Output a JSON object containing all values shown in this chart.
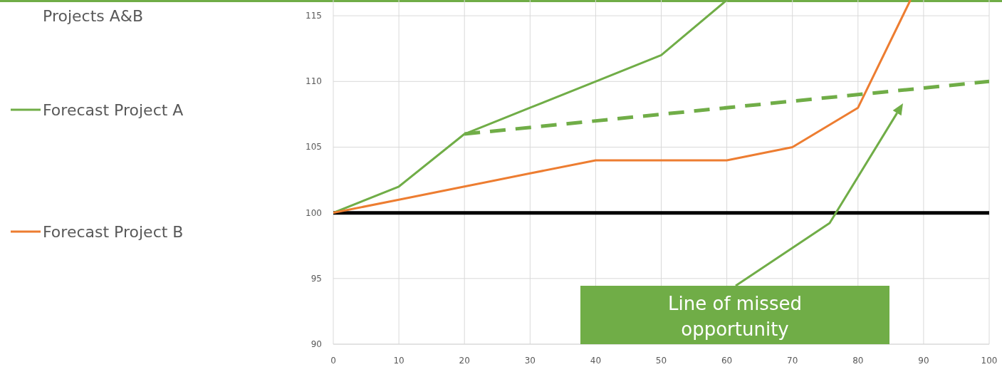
{
  "chart_data": {
    "type": "line",
    "title": "Projects A&B",
    "xlim": [
      0,
      100
    ],
    "xticks": [
      0,
      10,
      20,
      30,
      40,
      50,
      60,
      70,
      80,
      90,
      100
    ],
    "ylim": [
      90,
      116.2
    ],
    "yticks": [
      90,
      95,
      100,
      105,
      110,
      115
    ],
    "grid": true,
    "legend": "left",
    "line_style": "solid",
    "marker": "none",
    "series": [
      {
        "name": "Forecast Project A",
        "color": "#70ad47",
        "x": [
          0,
          10,
          20,
          30,
          40,
          50,
          60
        ],
        "values": [
          100,
          102,
          106,
          108,
          110,
          112,
          116.2
        ]
      },
      {
        "name": "Forecast Project B",
        "color": "#ed7d31",
        "x": [
          0,
          10,
          20,
          30,
          40,
          50,
          60,
          70,
          80,
          88
        ],
        "values": [
          100,
          101,
          102,
          103,
          104,
          104,
          104,
          105,
          108,
          116.2
        ]
      },
      {
        "type": "line",
        "line_style": "dashed",
        "color": "#70ad47",
        "x": [
          20,
          100
        ],
        "values": [
          106,
          110
        ]
      }
    ],
    "ref_lines": [
      {
        "axis": "y",
        "value": 100,
        "color": "#000000"
      }
    ],
    "annotations": [
      "Line of missed opportunity"
    ]
  }
}
